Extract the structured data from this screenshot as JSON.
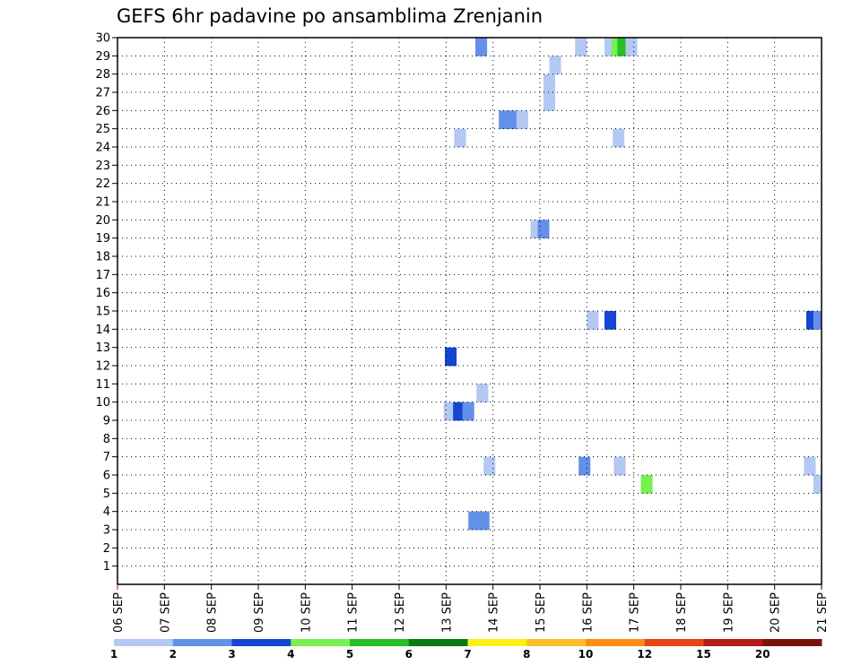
{
  "chart_data": {
    "type": "heatmap",
    "title": "GEFS 6hr padavine po ansamblima Zrenjanin",
    "xlabel": "",
    "ylabel": "",
    "x_tick_labels": [
      "06 SEP",
      "07 SEP",
      "08 SEP",
      "09 SEP",
      "10 SEP",
      "11 SEP",
      "12 SEP",
      "13 SEP",
      "14 SEP",
      "15 SEP",
      "16 SEP",
      "17 SEP",
      "18 SEP",
      "19 SEP",
      "20 SEP",
      "21 SEP"
    ],
    "xlim": [
      0,
      60
    ],
    "y_tick_labels": [
      "1",
      "2",
      "3",
      "4",
      "5",
      "6",
      "7",
      "8",
      "9",
      "10",
      "11",
      "12",
      "13",
      "14",
      "15",
      "16",
      "17",
      "18",
      "19",
      "20",
      "21",
      "22",
      "23",
      "24",
      "25",
      "26",
      "27",
      "28",
      "29",
      "30"
    ],
    "ylim": [
      0,
      30
    ],
    "grid": true,
    "colorbar": {
      "labels": [
        "1",
        "2",
        "3",
        "4",
        "5",
        "6",
        "7",
        "8",
        "10",
        "12",
        "15",
        "20"
      ],
      "colors": [
        "#b4c8f4",
        "#6490ea",
        "#1446d2",
        "#78f050",
        "#24c024",
        "#0a7a14",
        "#faf014",
        "#ffbe28",
        "#ff8c14",
        "#e64614",
        "#b41a14",
        "#78140a"
      ]
    },
    "cells": [
      {
        "x": 31.5,
        "y": 30,
        "color": "#6490ea"
      },
      {
        "x": 37.8,
        "y": 29,
        "color": "#b4c8f4"
      },
      {
        "x": 37.3,
        "y": 28,
        "color": "#b4c8f4"
      },
      {
        "x": 37.3,
        "y": 27,
        "color": "#b4c8f4"
      },
      {
        "x": 40.0,
        "y": 30,
        "color": "#b4c8f4"
      },
      {
        "x": 42.5,
        "y": 30,
        "color": "#b4c8f4"
      },
      {
        "x": 43.1,
        "y": 30,
        "color": "#78f050"
      },
      {
        "x": 43.6,
        "y": 30,
        "color": "#24c024"
      },
      {
        "x": 44.3,
        "y": 30,
        "color": "#b4c8f4"
      },
      {
        "x": 33.5,
        "y": 26,
        "color": "#6490ea"
      },
      {
        "x": 34.3,
        "y": 26,
        "color": "#6490ea"
      },
      {
        "x": 35.0,
        "y": 26,
        "color": "#b4c8f4"
      },
      {
        "x": 29.7,
        "y": 25,
        "color": "#b4c8f4"
      },
      {
        "x": 43.2,
        "y": 25,
        "color": "#b4c8f4"
      },
      {
        "x": 36.2,
        "y": 20,
        "color": "#b4c8f4"
      },
      {
        "x": 36.8,
        "y": 20,
        "color": "#6490ea"
      },
      {
        "x": 41.0,
        "y": 15,
        "color": "#b4c8f4"
      },
      {
        "x": 42.5,
        "y": 15,
        "color": "#1446d2"
      },
      {
        "x": 59.7,
        "y": 15,
        "color": "#1446d2"
      },
      {
        "x": 60.3,
        "y": 15,
        "color": "#6490ea"
      },
      {
        "x": 28.9,
        "y": 13,
        "color": "#1446d2"
      },
      {
        "x": 31.6,
        "y": 11,
        "color": "#b4c8f4"
      },
      {
        "x": 28.8,
        "y": 10,
        "color": "#b4c8f4"
      },
      {
        "x": 29.6,
        "y": 10,
        "color": "#1446d2"
      },
      {
        "x": 30.4,
        "y": 10,
        "color": "#6490ea"
      },
      {
        "x": 32.2,
        "y": 7,
        "color": "#b4c8f4"
      },
      {
        "x": 40.3,
        "y": 7,
        "color": "#6490ea"
      },
      {
        "x": 43.3,
        "y": 7,
        "color": "#b4c8f4"
      },
      {
        "x": 59.5,
        "y": 7,
        "color": "#b4c8f4"
      },
      {
        "x": 45.6,
        "y": 6,
        "color": "#78f050"
      },
      {
        "x": 60.3,
        "y": 6,
        "color": "#b4c8f4"
      },
      {
        "x": 30.9,
        "y": 4,
        "color": "#6490ea"
      },
      {
        "x": 31.7,
        "y": 4,
        "color": "#6490ea"
      }
    ]
  }
}
